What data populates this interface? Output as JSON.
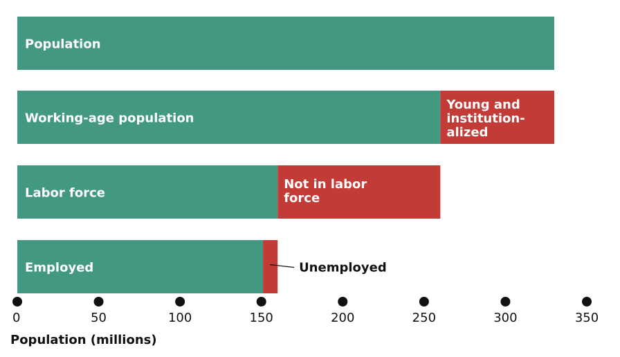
{
  "chart_data": {
    "type": "bar",
    "orientation": "horizontal",
    "stacked": true,
    "xlabel": "Population (millions)",
    "xlim": [
      0,
      350
    ],
    "xticks": [
      0,
      50,
      100,
      150,
      200,
      250,
      300,
      350
    ],
    "grid": false,
    "colors": {
      "primary": "#439882",
      "secondary": "#c33b36"
    },
    "bars": [
      {
        "label": "Population",
        "segments": [
          {
            "value": 330,
            "color": "#439882",
            "label": ""
          }
        ]
      },
      {
        "label": "Working-age population",
        "segments": [
          {
            "value": 260,
            "color": "#439882",
            "label": ""
          },
          {
            "value": 70,
            "color": "#c33b36",
            "label": [
              "Young and",
              "institution-",
              "alized"
            ]
          }
        ]
      },
      {
        "label": "Labor force",
        "segments": [
          {
            "value": 160,
            "color": "#439882",
            "label": ""
          },
          {
            "value": 100,
            "color": "#c33b36",
            "label": [
              "Not in labor",
              "force"
            ]
          }
        ]
      },
      {
        "label": "Employed",
        "segments": [
          {
            "value": 151,
            "color": "#439882",
            "label": ""
          },
          {
            "value": 9,
            "color": "#c33b36",
            "label": "",
            "callout": "Unemployed"
          }
        ]
      }
    ]
  }
}
